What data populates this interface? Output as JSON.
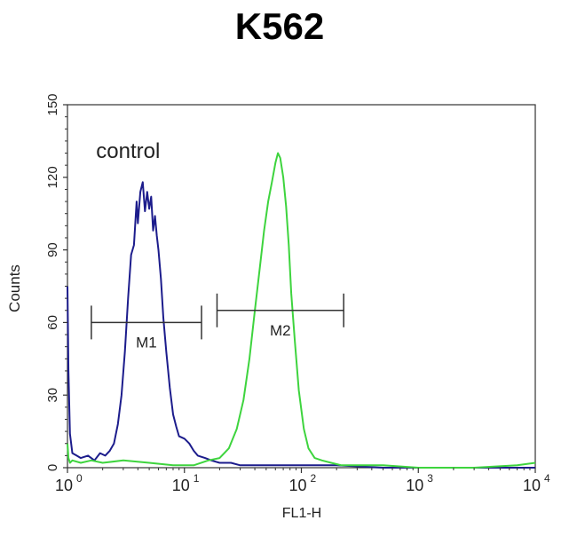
{
  "chart_data": {
    "type": "line",
    "title": "K562",
    "xlabel": "FL1-H",
    "ylabel": "Counts",
    "x_scale": "log",
    "xlim": [
      1,
      10000
    ],
    "ylim": [
      0,
      150
    ],
    "x_ticks": [
      {
        "value": 1,
        "base": "10",
        "exp": "0"
      },
      {
        "value": 10,
        "base": "10",
        "exp": "1"
      },
      {
        "value": 100,
        "base": "10",
        "exp": "2"
      },
      {
        "value": 1000,
        "base": "10",
        "exp": "3"
      },
      {
        "value": 10000,
        "base": "10",
        "exp": "4"
      }
    ],
    "y_ticks": [
      0,
      30,
      60,
      90,
      120,
      150
    ],
    "grid": false,
    "annotations": [
      {
        "text": "control",
        "x": 3.3,
        "y": 128
      }
    ],
    "gates": [
      {
        "name": "M1",
        "x_start": 1.6,
        "x_end": 14,
        "y": 60
      },
      {
        "name": "M2",
        "x_start": 19,
        "x_end": 230,
        "y": 65
      }
    ],
    "series": [
      {
        "color": "#1c1c8c",
        "x": [
          1.0,
          1.02,
          1.05,
          1.1,
          1.2,
          1.3,
          1.5,
          1.7,
          1.9,
          2.1,
          2.3,
          2.5,
          2.7,
          2.9,
          3.1,
          3.3,
          3.5,
          3.7,
          3.9,
          4.0,
          4.2,
          4.4,
          4.6,
          4.8,
          5.0,
          5.2,
          5.4,
          5.6,
          5.8,
          6.0,
          6.3,
          6.6,
          7.0,
          7.5,
          8.0,
          8.5,
          9.0,
          10,
          11,
          12,
          13,
          15,
          17,
          20,
          25,
          30,
          40,
          60,
          100,
          200,
          500,
          1000,
          10000
        ],
        "y": [
          75,
          40,
          14,
          6,
          5,
          4,
          5,
          3,
          6,
          5,
          7,
          10,
          18,
          30,
          48,
          70,
          88,
          92,
          110,
          101,
          114,
          118,
          106,
          114,
          107,
          112,
          98,
          104,
          96,
          90,
          78,
          62,
          48,
          33,
          22,
          17,
          13,
          12,
          10,
          7,
          5,
          4,
          3,
          2,
          2,
          1,
          1,
          1,
          1,
          1,
          0,
          0,
          0
        ]
      },
      {
        "color": "#3ed43e",
        "x": [
          1.0,
          1.02,
          1.05,
          1.1,
          1.3,
          1.6,
          2,
          3,
          5,
          8,
          12,
          16,
          20,
          24,
          28,
          32,
          36,
          40,
          44,
          48,
          52,
          56,
          60,
          63,
          66,
          70,
          74,
          78,
          82,
          88,
          95,
          105,
          115,
          130,
          150,
          180,
          220,
          300,
          500,
          1000,
          3000,
          7000,
          10000
        ],
        "y": [
          10,
          4,
          2,
          3,
          2,
          3,
          2,
          3,
          2,
          1,
          1,
          3,
          4,
          8,
          16,
          28,
          45,
          65,
          82,
          98,
          110,
          118,
          126,
          130,
          128,
          120,
          108,
          92,
          72,
          52,
          32,
          16,
          8,
          4,
          3,
          2,
          1,
          1,
          1,
          0,
          0,
          1,
          2
        ]
      }
    ]
  }
}
